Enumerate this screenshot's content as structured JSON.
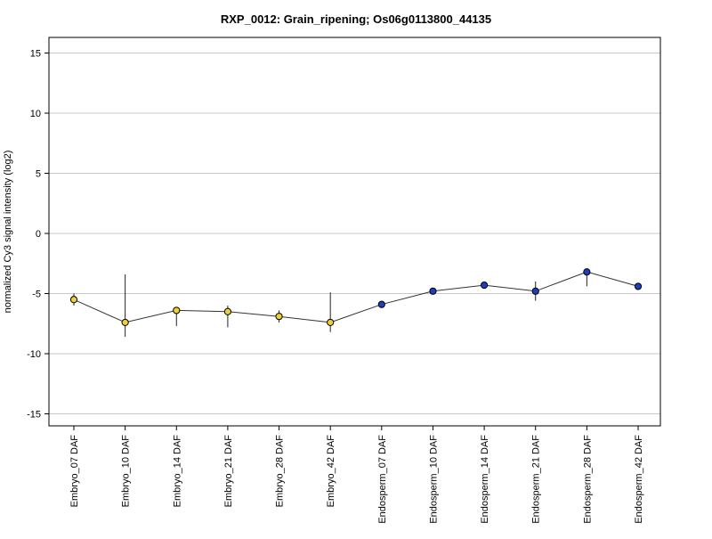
{
  "chart_data": {
    "type": "line",
    "title": "RXP_0012: Grain_ripening; Os06g0113800_44135",
    "ylabel": "normalized Cy3 signal intensity (log2)",
    "xlabel": "",
    "ylim": [
      -16,
      16.3
    ],
    "yticks": [
      -15,
      -10,
      -5,
      0,
      5,
      10,
      15
    ],
    "grid": true,
    "categories": [
      "Embryo_07 DAF",
      "Embryo_10 DAF",
      "Embryo_14 DAF",
      "Embryo_21 DAF",
      "Embryo_28 DAF",
      "Embryo_42 DAF",
      "Endosperm_07 DAF",
      "Endosperm_10 DAF",
      "Endosperm_14 DAF",
      "Endosperm_21 DAF",
      "Endosperm_28 DAF",
      "Endosperm_42 DAF"
    ],
    "values": [
      -5.5,
      -7.4,
      -6.4,
      -6.5,
      -6.9,
      -7.4,
      -5.9,
      -4.8,
      -4.3,
      -4.8,
      -3.2,
      -4.4
    ],
    "error_low": [
      -6.0,
      -8.6,
      -7.7,
      -7.8,
      -7.4,
      -8.2,
      -6.2,
      -5.0,
      -4.4,
      -5.6,
      -4.4,
      -4.5
    ],
    "error_high": [
      -5.0,
      -3.4,
      -6.2,
      -6.0,
      -6.4,
      -4.9,
      -5.6,
      -4.6,
      -4.1,
      -4.0,
      -3.0,
      -4.2
    ],
    "point_colors": [
      "#f0cf33",
      "#f0cf33",
      "#f0cf33",
      "#f0cf33",
      "#f0cf33",
      "#f0cf33",
      "#1f3fb8",
      "#1f3fb8",
      "#1f3fb8",
      "#1f3fb8",
      "#1f3fb8",
      "#1f3fb8"
    ]
  }
}
